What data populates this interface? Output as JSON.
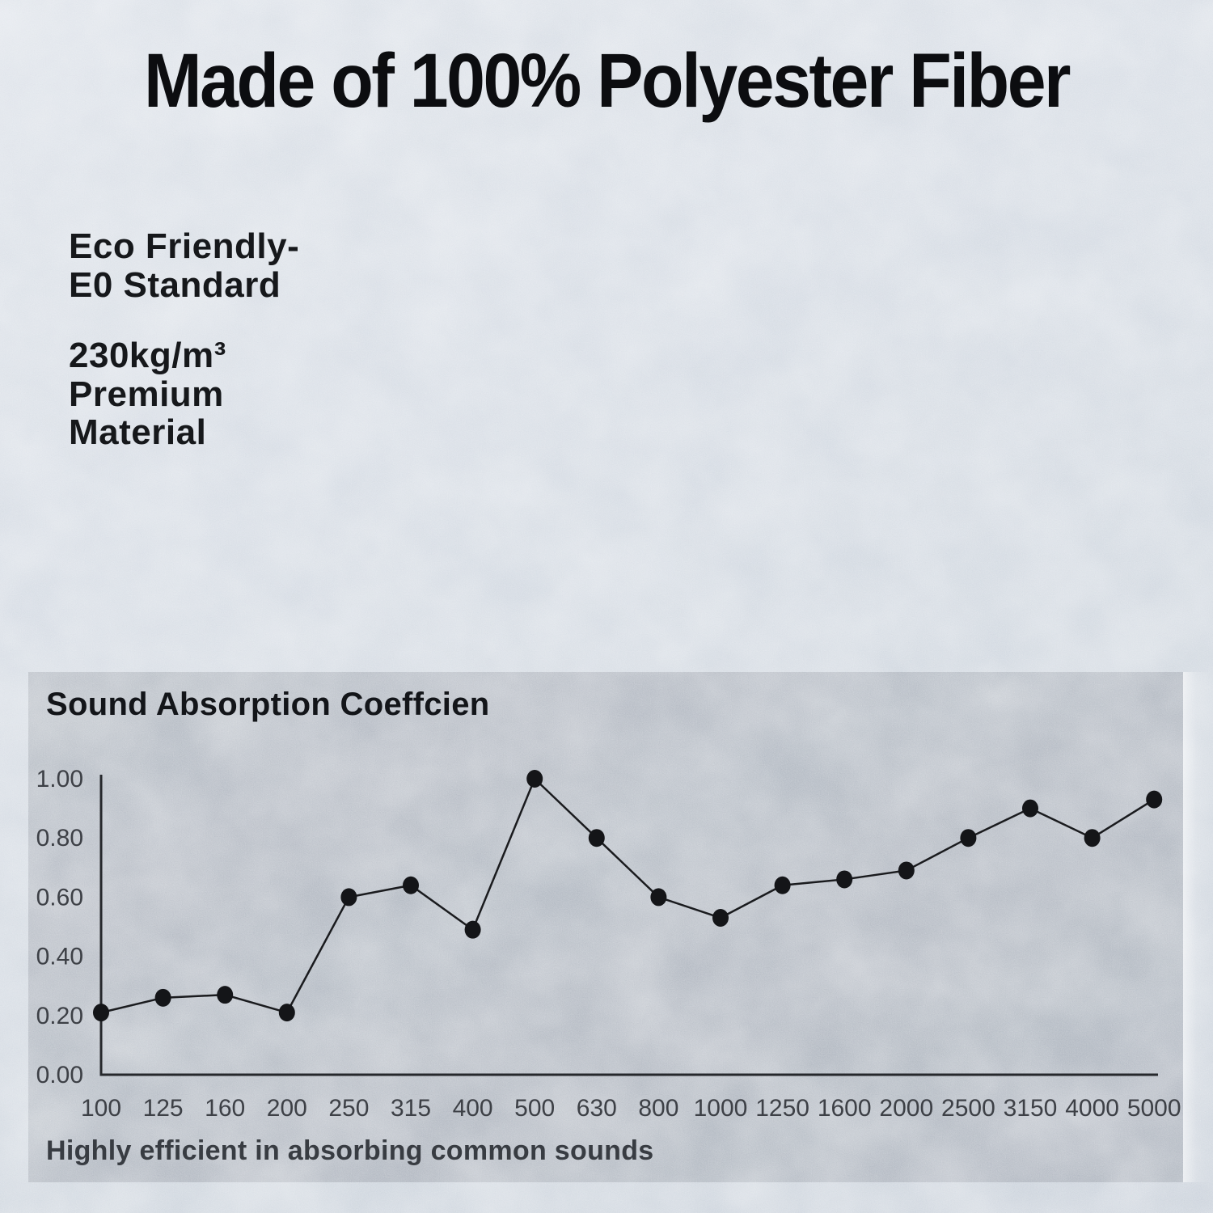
{
  "header": {
    "title": "Made of 100% Polyester Fiber"
  },
  "features": [
    {
      "lines": [
        "Eco Friendly-",
        "E0 Standard"
      ]
    },
    {
      "lines": [
        "230kg/m³",
        "Premium",
        "Material"
      ]
    }
  ],
  "chart_panel": {
    "title": "Sound Absorption Coeffcien",
    "caption": "Highly efficient in absorbing common sounds"
  },
  "chart_data": {
    "type": "line",
    "title": "Sound Absorption Coeffcien",
    "categories": [
      "100",
      "125",
      "160",
      "200",
      "250",
      "315",
      "400",
      "500",
      "630",
      "800",
      "1000",
      "1250",
      "1600",
      "2000",
      "2500",
      "3150",
      "4000",
      "5000"
    ],
    "values": [
      0.21,
      0.26,
      0.27,
      0.21,
      0.6,
      0.64,
      0.49,
      1.0,
      0.8,
      0.6,
      0.53,
      0.64,
      0.66,
      0.69,
      0.8,
      0.9,
      0.8,
      0.93
    ],
    "xlabel": "",
    "ylabel": "",
    "ylim": [
      0,
      1.0
    ],
    "yticks": [
      "1.00",
      "0.80",
      "0.60",
      "0.40",
      "0.20",
      "0.00"
    ],
    "grid": false,
    "legend": "none",
    "marker": "circle",
    "axis_color": "#26282c",
    "line_color": "#1a1b1e",
    "point_color": "#141518",
    "tick_color": "#3d4046"
  },
  "colors": {
    "background": "#d5dbe3",
    "panel_overlay": "#b7bcc4",
    "title_text": "#0c0d10",
    "feature_text": "#16181b",
    "chart_title_text": "#131519",
    "caption_text": "#383c42"
  }
}
